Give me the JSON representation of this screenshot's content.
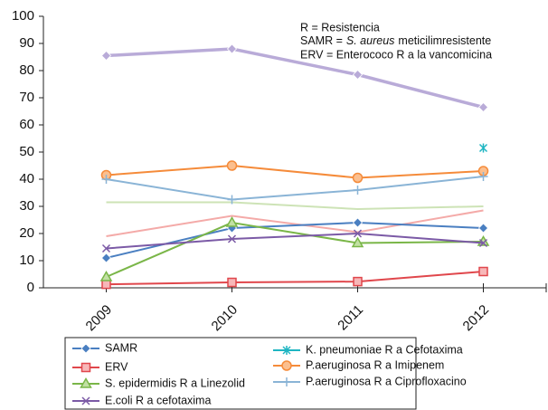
{
  "chart_data": {
    "type": "line",
    "annotations": [
      "R = Resistencia",
      "SAMR =",
      "S. aureus",
      "meticilimresistente",
      "ERV = Enterococo R a la vancomicina"
    ],
    "categories": [
      "2009",
      "2010",
      "2011",
      "2012"
    ],
    "ylim": [
      0,
      100
    ],
    "yticks": [
      0,
      10,
      20,
      30,
      40,
      50,
      60,
      70,
      80,
      90,
      100
    ],
    "series": [
      {
        "color": "#b9abd8",
        "marker": "diamond",
        "values": [
          85.5,
          88,
          78.5,
          66.5
        ]
      },
      {
        "color": "#f4aaa8",
        "marker": "none",
        "values": [
          19,
          26.5,
          20.5,
          28.5
        ]
      },
      {
        "color": "#cde3b6",
        "marker": "none",
        "values": [
          31.5,
          31.5,
          29,
          30
        ]
      },
      {
        "name": "SAMR",
        "color": "#4a7fc1",
        "marker": "diamond",
        "values": [
          11,
          22,
          24,
          22
        ]
      },
      {
        "name": "ERV",
        "color": "#e0474c",
        "marker": "square",
        "values": [
          1.3,
          2,
          2.3,
          6
        ]
      },
      {
        "name": "S. epidermidis R a Linezolid",
        "color": "#7ab648",
        "marker": "triangle",
        "values": [
          4,
          24,
          16.5,
          17
        ]
      },
      {
        "name": "E.coli R a cefotaxima",
        "color": "#7b5aa6",
        "marker": "x",
        "values": [
          14.5,
          18,
          20,
          16.5
        ]
      },
      {
        "name": "K. pneumoniae R a Cefotaxima",
        "color": "#1fb5c2",
        "marker": "star",
        "values": [
          null,
          null,
          null,
          51.5
        ]
      },
      {
        "name": "P.aeruginosa R a Imipenem",
        "color": "#f58b3a",
        "marker": "circle",
        "values": [
          41.5,
          45,
          40.5,
          43
        ]
      },
      {
        "name": "P.aeruginosa R a Ciprofloxacino",
        "color": "#8ab4d6",
        "marker": "plus",
        "values": [
          40,
          32.5,
          36,
          41
        ]
      }
    ]
  }
}
